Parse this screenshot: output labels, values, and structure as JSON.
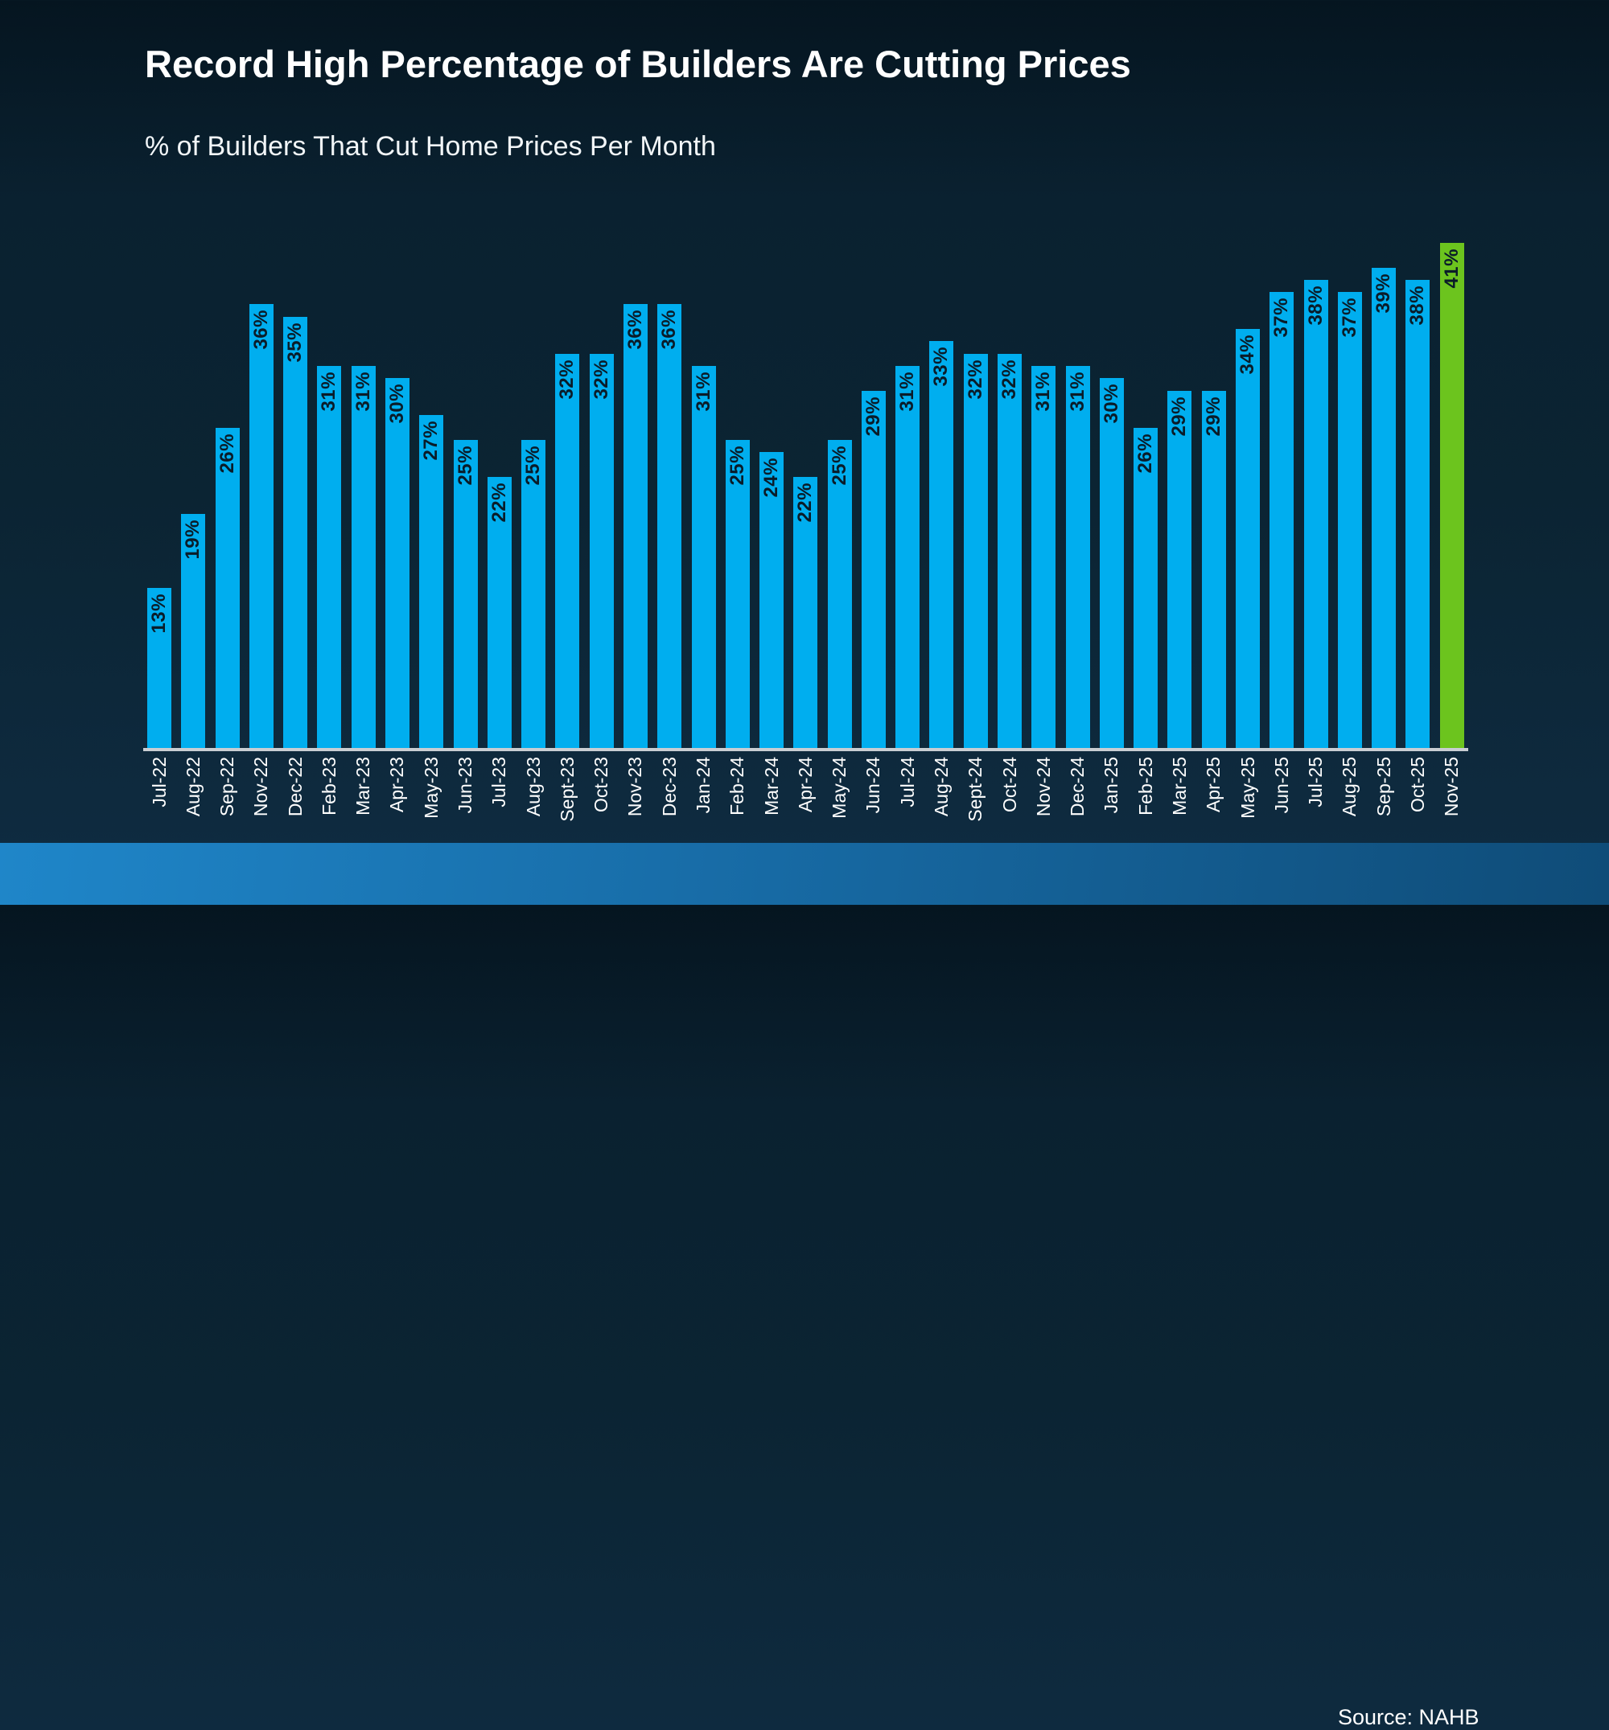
{
  "title": "Record High Percentage of Builders Are Cutting Prices",
  "subtitle": "% of Builders That Cut Home Prices Per Month",
  "source": "Source: NAHB",
  "colors": {
    "bar": "#00AEEF",
    "highlight_bar": "#6CC41E",
    "value_label": "#0A1C29",
    "axis_line": "#C9CED3",
    "category_label": "#FFFFFF",
    "background": "#0B2433",
    "footer_left": "#1F86C9",
    "footer_right": "#0F4C78"
  },
  "chart_data": {
    "type": "bar",
    "title": "Record High Percentage of Builders Are Cutting Prices",
    "subtitle": "% of Builders That Cut Home Prices Per Month",
    "xlabel": "",
    "ylabel": "",
    "unit": "%",
    "ylim": [
      0,
      45
    ],
    "grid": false,
    "legend": "none",
    "value_label_style": "rotated vertical, inside top of bar",
    "category_label_style": "rotated vertical below axis",
    "highlight_index": 38,
    "categories": [
      "Jul-22",
      "Aug-22",
      "Sep-22",
      "Nov-22",
      "Dec-22",
      "Feb-23",
      "Mar-23",
      "Apr-23",
      "May-23",
      "Jun-23",
      "Jul-23",
      "Aug-23",
      "Sept-23",
      "Oct-23",
      "Nov-23",
      "Dec-23",
      "Jan-24",
      "Feb-24",
      "Mar-24",
      "Apr-24",
      "May-24",
      "Jun-24",
      "Jul-24",
      "Aug-24",
      "Sept-24",
      "Oct-24",
      "Nov-24",
      "Dec-24",
      "Jan-25",
      "Feb-25",
      "Mar-25",
      "Apr-25",
      "May-25",
      "Jun-25",
      "Jul-25",
      "Aug-25",
      "Sep-25",
      "Oct-25",
      "Nov-25"
    ],
    "values": [
      13,
      19,
      26,
      36,
      35,
      31,
      31,
      30,
      27,
      25,
      22,
      25,
      32,
      32,
      36,
      36,
      31,
      25,
      24,
      22,
      25,
      29,
      31,
      33,
      32,
      32,
      31,
      31,
      30,
      26,
      29,
      29,
      34,
      37,
      38,
      37,
      39,
      38,
      41
    ]
  }
}
